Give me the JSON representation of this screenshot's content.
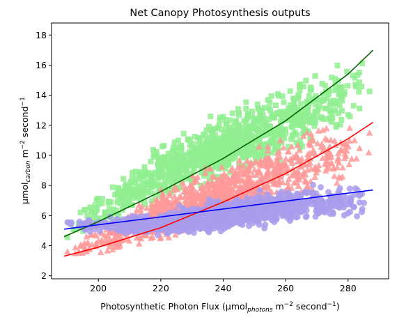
{
  "chart_data": {
    "type": "scatter",
    "title": "Net Canopy Photosynthesis outputs",
    "xlabel": {
      "prefix": "Photosynthetic Photon Flux (µmol",
      "sub": "photons",
      "mid": " m",
      "sup1": "−2",
      "mid2": " second",
      "sup2": "−1",
      "suffix": ")"
    },
    "ylabel": {
      "prefix": "µmol",
      "sub": "carbon",
      "mid": " m",
      "sup1": "−2",
      "mid2": " second",
      "sup2": "−1"
    },
    "xlim": [
      185,
      293
    ],
    "ylim": [
      1.8,
      18.8
    ],
    "xticks": [
      200,
      220,
      240,
      260,
      280
    ],
    "yticks": [
      2,
      4,
      6,
      8,
      10,
      12,
      14,
      16,
      18
    ],
    "grid": false,
    "legend": "none",
    "series": [
      {
        "marker": "square",
        "color": "#90ee90",
        "fit_color": "#006400",
        "cloud": {
          "x_range": [
            189,
            288
          ],
          "lower": [
            [
              189,
              4.0
            ],
            [
              220,
              6.4
            ],
            [
              250,
              8.5
            ],
            [
              288,
              11.8
            ]
          ],
          "upper": [
            [
              189,
              5.8
            ],
            [
              220,
              11.0
            ],
            [
              250,
              14.4
            ],
            [
              288,
              18.0
            ]
          ]
        },
        "fit": {
          "x": [
            189,
            200,
            220,
            240,
            260,
            280,
            288
          ],
          "y": [
            4.6,
            5.6,
            7.6,
            9.8,
            12.3,
            15.4,
            17.0
          ]
        }
      },
      {
        "marker": "triangle",
        "color": "#ff9999",
        "fit_color": "#ff0000",
        "cloud": {
          "x_range": [
            189,
            288
          ],
          "lower": [
            [
              189,
              2.8
            ],
            [
              220,
              4.0
            ],
            [
              250,
              5.5
            ],
            [
              288,
              8.3
            ]
          ],
          "upper": [
            [
              189,
              4.0
            ],
            [
              220,
              8.0
            ],
            [
              250,
              11.0
            ],
            [
              288,
              13.2
            ]
          ]
        },
        "fit": {
          "x": [
            189,
            200,
            220,
            240,
            260,
            280,
            288
          ],
          "y": [
            3.3,
            3.9,
            5.2,
            6.9,
            8.8,
            11.1,
            12.2
          ]
        }
      },
      {
        "marker": "circle",
        "color": "#a99cec",
        "fit_color": "#0000ff",
        "cloud": {
          "x_range": [
            189,
            288
          ],
          "lower": [
            [
              189,
              4.9
            ],
            [
              220,
              4.4
            ],
            [
              250,
              5.0
            ],
            [
              288,
              5.9
            ]
          ],
          "upper": [
            [
              189,
              5.9
            ],
            [
              220,
              6.4
            ],
            [
              250,
              7.8
            ],
            [
              288,
              8.7
            ]
          ]
        },
        "fit": {
          "x": [
            189,
            288
          ],
          "y": [
            5.1,
            7.7
          ]
        }
      }
    ]
  }
}
